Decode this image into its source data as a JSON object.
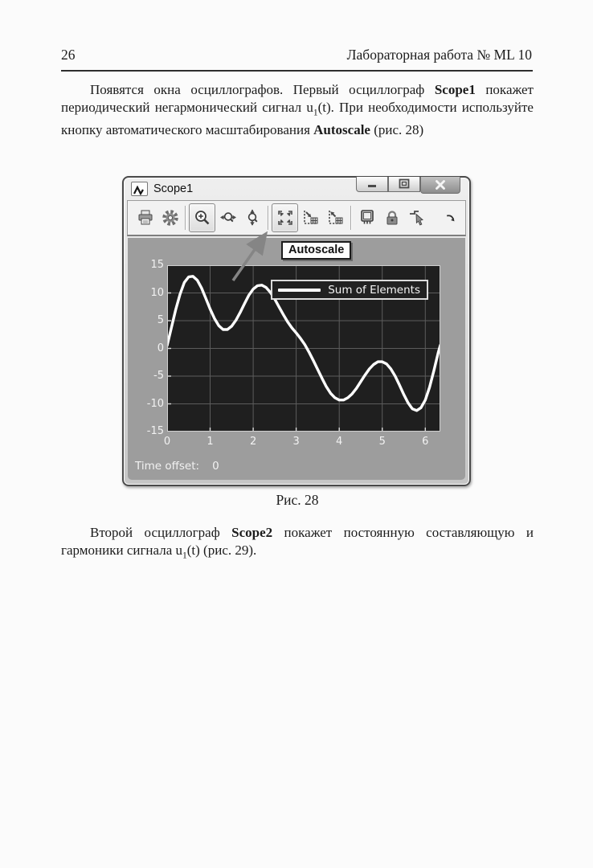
{
  "header": {
    "page_number": "26",
    "title": "Лабораторная работа № ML 10"
  },
  "paragraphs": [
    {
      "segments": [
        {
          "t": "Появятся окна осциллографов. Первый осциллограф "
        },
        {
          "t": "Scope1",
          "b": true
        },
        {
          "t": " покажет периодический негармонический сигнал u"
        },
        {
          "t": "1",
          "sub": true
        },
        {
          "t": "(t). При необходимости используйте кнопку автоматического масштабирования "
        },
        {
          "t": "Autoscale",
          "b": true
        },
        {
          "t": " (рис. 28)"
        }
      ]
    },
    {
      "segments": [
        {
          "t": "Второй осциллограф "
        },
        {
          "t": "Scope2",
          "b": true
        },
        {
          "t": " покажет постоянную составляющую и гармоники сигнала u"
        },
        {
          "t": "1",
          "sub": true
        },
        {
          "t": "(t) (рис. 29)."
        }
      ]
    }
  ],
  "window": {
    "title": "Scope1",
    "buttons": [
      "minimize-button",
      "maximize-button",
      "close-button"
    ],
    "toolbar": {
      "items": [
        {
          "icon": "print-icon",
          "active": false,
          "sep_after": false
        },
        {
          "icon": "parameters-icon",
          "active": false,
          "sep_after": true
        },
        {
          "icon": "zoom-icon",
          "active": true,
          "sep_after": false
        },
        {
          "icon": "zoom-x-icon",
          "active": false,
          "sep_after": false
        },
        {
          "icon": "zoom-y-icon",
          "active": false,
          "sep_after": true
        },
        {
          "icon": "autoscale-icon",
          "active": true,
          "sep_after": false
        },
        {
          "icon": "save-axes-icon",
          "active": false,
          "sep_after": false
        },
        {
          "icon": "restore-axes-icon",
          "active": false,
          "sep_after": true
        },
        {
          "icon": "floating-scope-icon",
          "active": false,
          "sep_after": false
        },
        {
          "icon": "lock-icon",
          "active": false,
          "sep_after": false
        },
        {
          "icon": "signal-selector-icon",
          "active": false,
          "sep_after": false
        }
      ],
      "overflow_icon": "overflow-icon"
    },
    "tooltip": {
      "text": "Autoscale"
    },
    "status": {
      "label": "Time offset:",
      "value": "0"
    }
  },
  "caption": {
    "text": "Рис. 28"
  },
  "colors": {
    "plot_bg": "#1f1f1f",
    "grid_line": "#5c5c5c",
    "trace": "#ffffff",
    "tick": "#d8d8d8",
    "axis_border": "#cfcfcf",
    "client_bg": "#9d9d9d",
    "annotation_arrow": "#858585"
  },
  "chart_data": {
    "type": "line",
    "title": "",
    "xlabel": "",
    "ylabel": "",
    "xlim": [
      0,
      6.35
    ],
    "ylim": [
      -15,
      15
    ],
    "xticks": [
      0,
      1,
      2,
      3,
      4,
      5,
      6
    ],
    "yticks": [
      15,
      10,
      5,
      0,
      -5,
      -10,
      -15
    ],
    "grid": true,
    "legend_position": "top-right",
    "time_offset": "0",
    "series": [
      {
        "name": "Sum of Elements",
        "color": "#ffffff",
        "x": [
          0,
          0.1,
          0.2,
          0.3,
          0.4,
          0.5,
          0.6,
          0.7,
          0.8,
          0.9,
          1.0,
          1.1,
          1.2,
          1.3,
          1.4,
          1.5,
          1.6,
          1.7,
          1.8,
          1.9,
          2.0,
          2.1,
          2.2,
          2.3,
          2.4,
          2.5,
          2.6,
          2.7,
          2.8,
          2.9,
          3.0,
          3.1,
          3.2,
          3.3,
          3.4,
          3.5,
          3.6,
          3.7,
          3.8,
          3.9,
          4.0,
          4.1,
          4.2,
          4.3,
          4.4,
          4.5,
          4.6,
          4.7,
          4.8,
          4.9,
          5.0,
          5.1,
          5.2,
          5.3,
          5.4,
          5.5,
          5.6,
          5.7,
          5.8,
          5.9,
          6.0,
          6.1,
          6.2,
          6.3,
          6.35
        ],
        "y": [
          0.5,
          3.8,
          7.0,
          9.8,
          11.9,
          12.9,
          13.0,
          12.3,
          10.9,
          9.0,
          7.1,
          5.4,
          4.1,
          3.4,
          3.4,
          4.0,
          5.1,
          6.5,
          8.1,
          9.6,
          10.7,
          11.3,
          11.4,
          11.0,
          10.1,
          8.9,
          7.5,
          6.1,
          4.8,
          3.7,
          2.8,
          1.8,
          0.7,
          -0.7,
          -2.2,
          -3.8,
          -5.4,
          -6.9,
          -8.1,
          -8.9,
          -9.3,
          -9.3,
          -8.9,
          -8.2,
          -7.2,
          -6.0,
          -4.8,
          -3.7,
          -2.9,
          -2.4,
          -2.4,
          -2.8,
          -3.7,
          -5.0,
          -6.6,
          -8.3,
          -9.8,
          -10.9,
          -11.2,
          -10.7,
          -9.3,
          -7.0,
          -4.0,
          -0.8,
          0.6
        ]
      }
    ]
  }
}
